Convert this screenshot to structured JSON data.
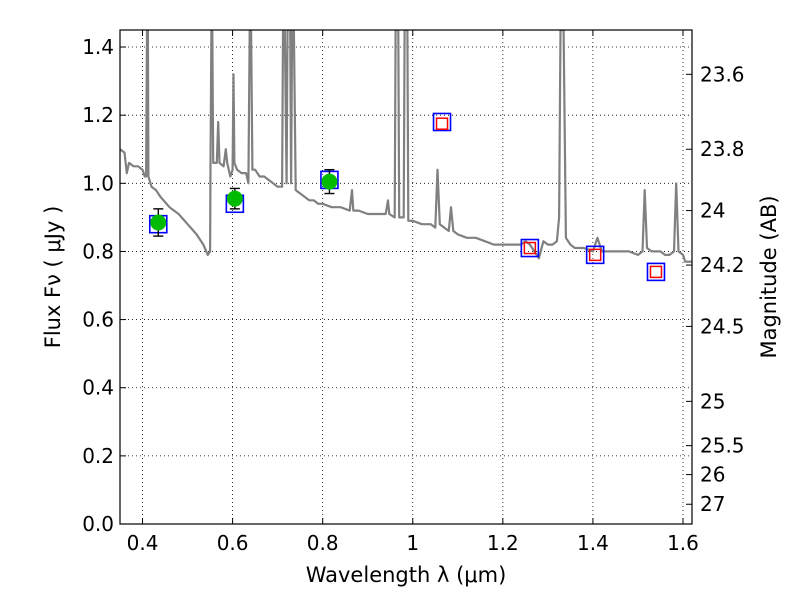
{
  "chart_data": {
    "type": "scatter",
    "xlabel": "Wavelength  λ (μm)",
    "ylabel": "Flux  Fν  ( μJy )",
    "y2label": "Magnitude (AB)",
    "xlim": [
      0.35,
      1.62
    ],
    "ylim": [
      0.0,
      1.45
    ],
    "grid": true,
    "x_ticks": [
      0.4,
      0.6,
      0.8,
      1.0,
      1.2,
      1.4,
      1.6
    ],
    "x_tick_labels": [
      "0.4",
      "0.6",
      "0.8",
      "1",
      "1.2",
      "1.4",
      "1.6"
    ],
    "y_ticks": [
      0.0,
      0.2,
      0.4,
      0.6,
      0.8,
      1.0,
      1.2,
      1.4
    ],
    "y_tick_labels": [
      "0.0",
      "0.2",
      "0.4",
      "0.6",
      "0.8",
      "1.0",
      "1.2",
      "1.4"
    ],
    "y2_ticks": [
      {
        "label": "23.6",
        "flux": 1.32
      },
      {
        "label": "23.8",
        "flux": 1.1
      },
      {
        "label": "24",
        "flux": 0.92
      },
      {
        "label": "24.2",
        "flux": 0.76
      },
      {
        "label": "24.5",
        "flux": 0.58
      },
      {
        "label": "25",
        "flux": 0.36
      },
      {
        "label": "25.5",
        "flux": 0.23
      },
      {
        "label": "26",
        "flux": 0.145
      },
      {
        "label": "27",
        "flux": 0.058
      }
    ],
    "series": [
      {
        "kind": "model_spectrum",
        "color": "#808080",
        "points": [
          [
            0.35,
            1.1
          ],
          [
            0.36,
            1.09
          ],
          [
            0.365,
            1.03
          ],
          [
            0.37,
            1.06
          ],
          [
            0.38,
            1.05
          ],
          [
            0.39,
            1.05
          ],
          [
            0.4,
            1.04
          ],
          [
            0.405,
            1.02
          ],
          [
            0.408,
            1.02
          ],
          [
            0.41,
            1.45
          ],
          [
            0.412,
            1.45
          ],
          [
            0.413,
            1.02
          ],
          [
            0.42,
            0.99
          ],
          [
            0.43,
            0.98
          ],
          [
            0.44,
            0.96
          ],
          [
            0.46,
            0.93
          ],
          [
            0.48,
            0.91
          ],
          [
            0.5,
            0.88
          ],
          [
            0.52,
            0.85
          ],
          [
            0.535,
            0.82
          ],
          [
            0.545,
            0.79
          ],
          [
            0.55,
            0.8
          ],
          [
            0.551,
            1.05
          ],
          [
            0.553,
            1.45
          ],
          [
            0.555,
            1.45
          ],
          [
            0.557,
            1.06
          ],
          [
            0.565,
            1.06
          ],
          [
            0.568,
            1.18
          ],
          [
            0.571,
            1.06
          ],
          [
            0.58,
            1.05
          ],
          [
            0.585,
            1.1
          ],
          [
            0.588,
            1.06
          ],
          [
            0.595,
            1.02
          ],
          [
            0.6,
            1.04
          ],
          [
            0.602,
            1.32
          ],
          [
            0.604,
            1.06
          ],
          [
            0.61,
            1.04
          ],
          [
            0.62,
            1.03
          ],
          [
            0.63,
            1.03
          ],
          [
            0.635,
            1.0
          ],
          [
            0.638,
            1.45
          ],
          [
            0.641,
            1.45
          ],
          [
            0.644,
            1.04
          ],
          [
            0.65,
            1.04
          ],
          [
            0.66,
            1.02
          ],
          [
            0.67,
            1.02
          ],
          [
            0.68,
            1.01
          ],
          [
            0.69,
            1.0
          ],
          [
            0.7,
            0.99
          ],
          [
            0.71,
            0.99
          ],
          [
            0.712,
            1.45
          ],
          [
            0.716,
            1.45
          ],
          [
            0.72,
            1.0
          ],
          [
            0.722,
            1.45
          ],
          [
            0.728,
            1.45
          ],
          [
            0.73,
            1.0
          ],
          [
            0.732,
            1.45
          ],
          [
            0.736,
            1.45
          ],
          [
            0.74,
            0.98
          ],
          [
            0.75,
            0.97
          ],
          [
            0.76,
            0.96
          ],
          [
            0.77,
            0.95
          ],
          [
            0.78,
            0.95
          ],
          [
            0.79,
            0.94
          ],
          [
            0.8,
            0.94
          ],
          [
            0.82,
            0.93
          ],
          [
            0.84,
            0.93
          ],
          [
            0.86,
            0.92
          ],
          [
            0.865,
            0.98
          ],
          [
            0.868,
            0.92
          ],
          [
            0.88,
            0.92
          ],
          [
            0.9,
            0.91
          ],
          [
            0.92,
            0.91
          ],
          [
            0.94,
            0.91
          ],
          [
            0.945,
            0.95
          ],
          [
            0.948,
            0.91
          ],
          [
            0.96,
            0.9
          ],
          [
            0.962,
            1.45
          ],
          [
            0.968,
            1.45
          ],
          [
            0.97,
            0.9
          ],
          [
            0.98,
            0.9
          ],
          [
            0.982,
            1.45
          ],
          [
            0.988,
            1.45
          ],
          [
            0.99,
            0.89
          ],
          [
            1.0,
            0.89
          ],
          [
            1.02,
            0.88
          ],
          [
            1.04,
            0.88
          ],
          [
            1.05,
            0.87
          ],
          [
            1.055,
            1.04
          ],
          [
            1.06,
            0.88
          ],
          [
            1.07,
            0.87
          ],
          [
            1.08,
            0.86
          ],
          [
            1.085,
            0.93
          ],
          [
            1.09,
            0.86
          ],
          [
            1.1,
            0.85
          ],
          [
            1.12,
            0.84
          ],
          [
            1.14,
            0.84
          ],
          [
            1.16,
            0.83
          ],
          [
            1.18,
            0.82
          ],
          [
            1.2,
            0.82
          ],
          [
            1.22,
            0.82
          ],
          [
            1.24,
            0.82
          ],
          [
            1.25,
            0.83
          ],
          [
            1.26,
            0.82
          ],
          [
            1.27,
            0.8
          ],
          [
            1.28,
            0.78
          ],
          [
            1.29,
            0.83
          ],
          [
            1.3,
            0.82
          ],
          [
            1.31,
            0.82
          ],
          [
            1.32,
            0.83
          ],
          [
            1.325,
            0.9
          ],
          [
            1.328,
            1.45
          ],
          [
            1.335,
            1.45
          ],
          [
            1.34,
            0.84
          ],
          [
            1.35,
            0.82
          ],
          [
            1.36,
            0.81
          ],
          [
            1.38,
            0.81
          ],
          [
            1.4,
            0.8
          ],
          [
            1.41,
            0.84
          ],
          [
            1.42,
            0.8
          ],
          [
            1.44,
            0.8
          ],
          [
            1.46,
            0.8
          ],
          [
            1.48,
            0.8
          ],
          [
            1.5,
            0.79
          ],
          [
            1.51,
            0.8
          ],
          [
            1.515,
            0.98
          ],
          [
            1.52,
            0.81
          ],
          [
            1.53,
            0.8
          ],
          [
            1.54,
            0.8
          ],
          [
            1.55,
            0.8
          ],
          [
            1.56,
            0.79
          ],
          [
            1.57,
            0.79
          ],
          [
            1.58,
            0.8
          ],
          [
            1.585,
            1.0
          ],
          [
            1.59,
            0.8
          ],
          [
            1.6,
            0.79
          ],
          [
            1.605,
            0.77
          ],
          [
            1.62,
            0.77
          ]
        ]
      },
      {
        "kind": "model_synthetic_photometry",
        "marker": "blue-square",
        "points": [
          [
            0.435,
            0.88
          ],
          [
            0.605,
            0.94
          ],
          [
            0.815,
            1.01
          ],
          [
            1.065,
            1.18
          ],
          [
            1.26,
            0.81
          ],
          [
            1.405,
            0.79
          ],
          [
            1.54,
            0.74
          ]
        ]
      },
      {
        "kind": "observed_photometry",
        "marker": "green-circle",
        "points": [
          [
            0.435,
            0.885
          ],
          [
            0.605,
            0.955
          ],
          [
            0.815,
            1.005
          ]
        ],
        "errors": [
          0.04,
          0.03,
          0.035
        ]
      },
      {
        "kind": "upper_limits",
        "marker": "red-square",
        "points": [
          [
            1.065,
            1.175
          ],
          [
            1.26,
            0.81
          ],
          [
            1.405,
            0.79
          ],
          [
            1.54,
            0.74
          ]
        ]
      }
    ]
  },
  "colors": {
    "spectrum": "#808080",
    "model_marker": "#0000ff",
    "observed_marker": "#00bb00",
    "limit_marker": "#ff0000",
    "grid": "#000000",
    "error_bar": "#000000"
  }
}
